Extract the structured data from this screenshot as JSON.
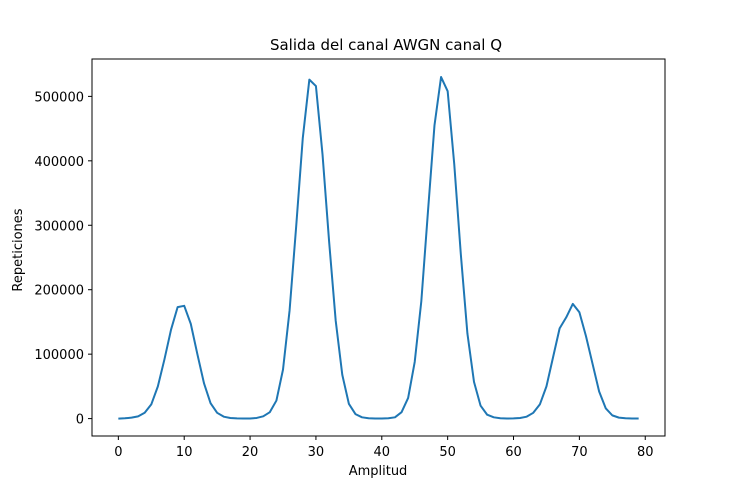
{
  "chart_data": {
    "type": "line",
    "title": "Salida del canal AWGN canal Q",
    "xlabel": "Amplitud",
    "ylabel": "Repeticiones",
    "xlim": [
      -4,
      83
    ],
    "ylim": [
      -27000,
      558000
    ],
    "xticks": [
      0,
      10,
      20,
      30,
      40,
      50,
      60,
      70,
      80
    ],
    "yticks": [
      0,
      100000,
      200000,
      300000,
      400000,
      500000
    ],
    "grid": false,
    "line_color": "#1f77b4",
    "series": [
      {
        "x": [
          0,
          1,
          2,
          3,
          4,
          5,
          6,
          7,
          8,
          9,
          10,
          11,
          12,
          13,
          14,
          15,
          16,
          17,
          18,
          19,
          20,
          21,
          22,
          23,
          24,
          25,
          26,
          27,
          28,
          29,
          30,
          31,
          32,
          33,
          34,
          35,
          36,
          37,
          38,
          39,
          40,
          41,
          42,
          43,
          44,
          45,
          46,
          47,
          48,
          49,
          50,
          51,
          52,
          53,
          54,
          55,
          56,
          57,
          58,
          59,
          60,
          61,
          62,
          63,
          64,
          65,
          66,
          67,
          68,
          69,
          70,
          71,
          72,
          73,
          74,
          75,
          76,
          77,
          78,
          79
        ],
        "values": [
          0,
          500,
          1500,
          3500,
          9000,
          22000,
          50000,
          92000,
          138000,
          173000,
          175000,
          147000,
          100000,
          55000,
          24000,
          9000,
          3000,
          1000,
          300,
          100,
          200,
          1000,
          3500,
          10000,
          28000,
          76000,
          168000,
          298000,
          435000,
          526000,
          516000,
          410000,
          275000,
          152000,
          68000,
          23000,
          7000,
          2000,
          500,
          200,
          200,
          500,
          2000,
          10000,
          32000,
          88000,
          182000,
          320000,
          455000,
          530000,
          508000,
          395000,
          255000,
          132000,
          57000,
          20000,
          6000,
          2000,
          500,
          200,
          300,
          1000,
          3000,
          9000,
          22000,
          50000,
          95000,
          140000,
          157000,
          178000,
          165000,
          128000,
          85000,
          42000,
          16000,
          5000,
          1500,
          500,
          200,
          100
        ]
      }
    ]
  }
}
